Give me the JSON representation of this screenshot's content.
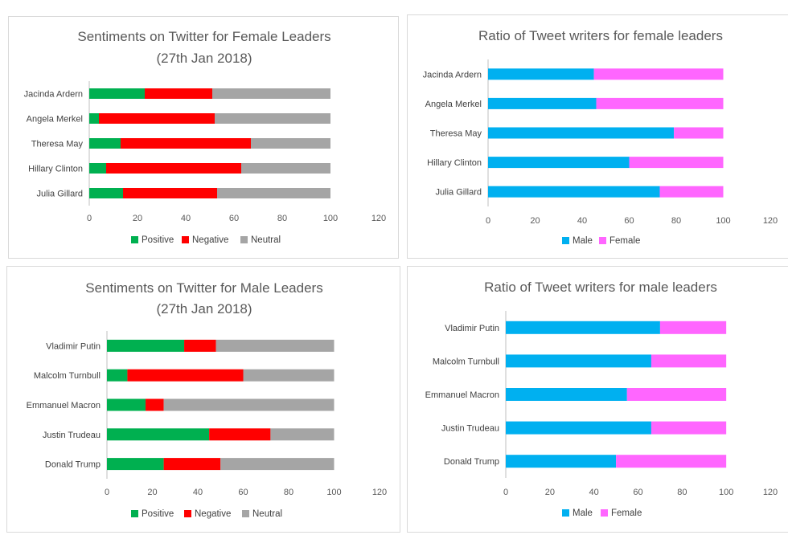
{
  "colors": {
    "positive": "#00b050",
    "negative": "#ff0000",
    "neutral": "#a5a5a5",
    "male": "#00b0f0",
    "female": "#ff66ff",
    "axis": "#bfbfbf"
  },
  "chart_data": [
    {
      "id": "female-sentiment",
      "type": "bar",
      "stacked": true,
      "orientation": "horizontal",
      "title": [
        "Sentiments on Twitter for Female Leaders",
        "(27th Jan 2018)"
      ],
      "categories": [
        "Jacinda Ardern",
        "Angela Merkel",
        "Theresa May",
        "Hillary Clinton",
        "Julia Gillard"
      ],
      "series": [
        {
          "name": "Positive",
          "color": "#00b050",
          "values": [
            23,
            4,
            13,
            7,
            14
          ]
        },
        {
          "name": "Negative",
          "color": "#ff0000",
          "values": [
            28,
            48,
            54,
            56,
            39
          ]
        },
        {
          "name": "Neutral",
          "color": "#a5a5a5",
          "values": [
            49,
            48,
            33,
            37,
            47
          ]
        }
      ],
      "xlim": [
        0,
        120
      ],
      "xticks": [
        "0",
        "20",
        "40",
        "60",
        "80",
        "100",
        "120"
      ],
      "legend": "bottom"
    },
    {
      "id": "female-writers",
      "type": "bar",
      "stacked": true,
      "orientation": "horizontal",
      "title": [
        "Ratio of Tweet writers for female leaders"
      ],
      "categories": [
        "Jacinda Ardern",
        "Angela Merkel",
        "Theresa May",
        "Hillary Clinton",
        "Julia Gillard"
      ],
      "series": [
        {
          "name": "Male",
          "color": "#00b0f0",
          "values": [
            45,
            46,
            79,
            60,
            73
          ]
        },
        {
          "name": "Female",
          "color": "#ff66ff",
          "values": [
            55,
            54,
            21,
            40,
            27
          ]
        }
      ],
      "xlim": [
        0,
        120
      ],
      "xticks": [
        "0",
        "20",
        "40",
        "60",
        "80",
        "100",
        "120"
      ],
      "legend": "bottom"
    },
    {
      "id": "male-sentiment",
      "type": "bar",
      "stacked": true,
      "orientation": "horizontal",
      "title": [
        "Sentiments on Twitter for Male Leaders",
        "(27th Jan 2018)"
      ],
      "categories": [
        "Vladimir Putin",
        "Malcolm Turnbull",
        "Emmanuel Macron",
        "Justin Trudeau",
        "Donald Trump"
      ],
      "series": [
        {
          "name": "Positive",
          "color": "#00b050",
          "values": [
            34,
            9,
            17,
            45,
            25
          ]
        },
        {
          "name": "Negative",
          "color": "#ff0000",
          "values": [
            14,
            51,
            8,
            27,
            25
          ]
        },
        {
          "name": "Neutral",
          "color": "#a5a5a5",
          "values": [
            52,
            40,
            75,
            28,
            50
          ]
        }
      ],
      "xlim": [
        0,
        120
      ],
      "xticks": [
        "0",
        "20",
        "40",
        "60",
        "80",
        "100",
        "120"
      ],
      "legend": "bottom"
    },
    {
      "id": "male-writers",
      "type": "bar",
      "stacked": true,
      "orientation": "horizontal",
      "title": [
        "Ratio of Tweet writers for male leaders"
      ],
      "categories": [
        "Vladimir Putin",
        "Malcolm Turnbull",
        "Emmanuel Macron",
        "Justin Trudeau",
        "Donald Trump"
      ],
      "series": [
        {
          "name": "Male",
          "color": "#00b0f0",
          "values": [
            70,
            66,
            55,
            66,
            50
          ]
        },
        {
          "name": "Female",
          "color": "#ff66ff",
          "values": [
            30,
            34,
            45,
            34,
            50
          ]
        }
      ],
      "xlim": [
        0,
        120
      ],
      "xticks": [
        "0",
        "20",
        "40",
        "60",
        "80",
        "100",
        "120"
      ],
      "legend": "bottom"
    }
  ]
}
